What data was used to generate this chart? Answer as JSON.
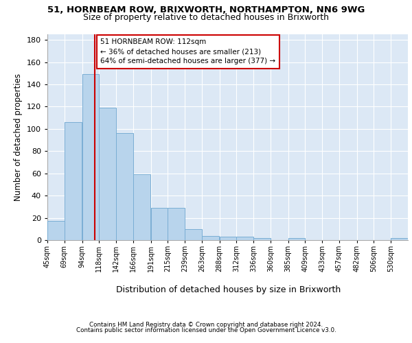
{
  "title1": "51, HORNBEAM ROW, BRIXWORTH, NORTHAMPTON, NN6 9WG",
  "title2": "Size of property relative to detached houses in Brixworth",
  "xlabel": "Distribution of detached houses by size in Brixworth",
  "ylabel": "Number of detached properties",
  "bar_color": "#b8d4ec",
  "bar_edge_color": "#7aaed4",
  "background_color": "#dce8f5",
  "grid_color": "#ffffff",
  "vline_x": 112,
  "vline_color": "#cc0000",
  "annotation_line1": "51 HORNBEAM ROW: 112sqm",
  "annotation_line2": "← 36% of detached houses are smaller (213)",
  "annotation_line3": "64% of semi-detached houses are larger (377) →",
  "categories": [
    "45sqm",
    "69sqm",
    "94sqm",
    "118sqm",
    "142sqm",
    "166sqm",
    "191sqm",
    "215sqm",
    "239sqm",
    "263sqm",
    "288sqm",
    "312sqm",
    "336sqm",
    "360sqm",
    "385sqm",
    "409sqm",
    "433sqm",
    "457sqm",
    "482sqm",
    "506sqm",
    "530sqm"
  ],
  "bin_left_edges": [
    45,
    69,
    94,
    118,
    142,
    166,
    191,
    215,
    239,
    263,
    288,
    312,
    336,
    360,
    385,
    409,
    433,
    457,
    482,
    506,
    530
  ],
  "bin_width": 24,
  "bar_heights": [
    17,
    106,
    149,
    119,
    96,
    59,
    29,
    29,
    10,
    4,
    3,
    3,
    2,
    0,
    2,
    0,
    0,
    0,
    0,
    0,
    2
  ],
  "ylim": [
    0,
    185
  ],
  "yticks": [
    0,
    20,
    40,
    60,
    80,
    100,
    120,
    140,
    160,
    180
  ],
  "footer1": "Contains HM Land Registry data © Crown copyright and database right 2024.",
  "footer2": "Contains public sector information licensed under the Open Government Licence v3.0."
}
